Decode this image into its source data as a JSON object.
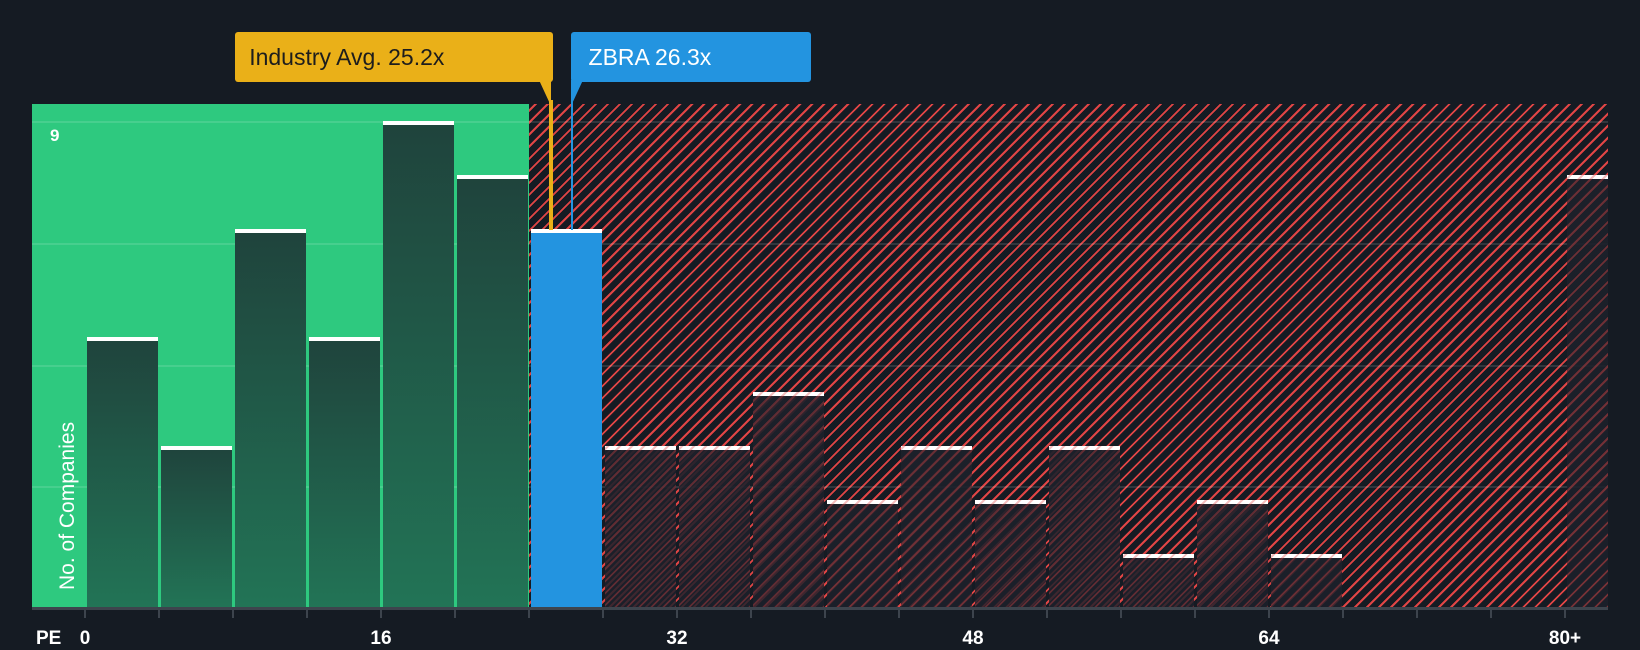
{
  "chart_data": {
    "type": "bar",
    "title": "",
    "xlabel": "PE",
    "ylabel": "No. of Companies",
    "ylim": [
      0,
      9
    ],
    "y_ticks_labeled": [
      "9"
    ],
    "x_tick_labels": [
      "0",
      "16",
      "32",
      "48",
      "64",
      "80+"
    ],
    "bin_width": 4,
    "categories": [
      "0-4",
      "4-8",
      "8-12",
      "12-16",
      "16-20",
      "20-24",
      "24-28",
      "28-32",
      "32-36",
      "36-40",
      "40-44",
      "44-48",
      "48-52",
      "52-56",
      "56-60",
      "60-64",
      "64-68",
      "80+"
    ],
    "values": [
      5,
      3,
      7,
      5,
      9,
      8,
      7,
      3,
      3,
      4,
      2,
      3,
      2,
      3,
      1,
      2,
      1,
      8
    ],
    "highlighted_bin": "24-28",
    "annotations": [
      {
        "label": "Industry Avg. 25.2x",
        "value": 25.2,
        "color": "#eab018"
      },
      {
        "label": "ZBRA 26.3x",
        "value": 26.3,
        "color": "#2394e0"
      }
    ],
    "zones": [
      {
        "name": "below-industry-average",
        "from": 0,
        "to": 24,
        "color": "#2ec97f"
      },
      {
        "name": "above-industry-average",
        "from": 24,
        "to": 84,
        "color": "#e04545",
        "pattern": "diagonal-hatch"
      }
    ],
    "grid": true
  },
  "labels": {
    "industry_avg": "Industry Avg. 25.2x",
    "company": "ZBRA 26.3x",
    "x_axis": "PE",
    "y_axis": "No. of Companies",
    "y_max": "9",
    "x_ticks": [
      "0",
      "16",
      "32",
      "48",
      "64",
      "80+"
    ]
  },
  "colors": {
    "background": "#151b23",
    "green_zone": "#2ec97f",
    "red_hatch": "#e04545",
    "highlight_bar": "#2394e0",
    "industry_marker": "#eab018"
  }
}
